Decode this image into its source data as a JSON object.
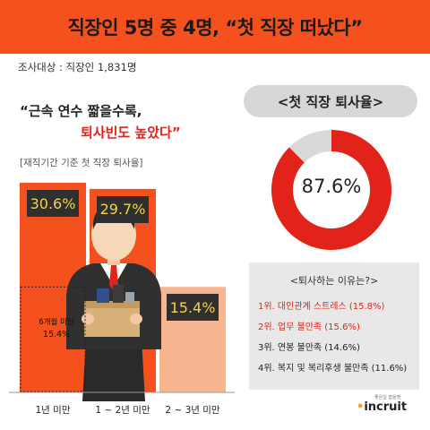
{
  "header": {
    "title": "직장인 5명 중 4명, “첫 직장 떠났다”"
  },
  "survey": {
    "label": "조사대상 : 직장인 1,831명"
  },
  "quote": {
    "line1": "“근속 연수 짧을수록,",
    "line2": "퇴사빈도 높았다”"
  },
  "basis": {
    "label": "[재직기간 기준 첫 직장 퇴사율]"
  },
  "chart_data": [
    {
      "type": "bar",
      "title": "[재직기간 기준 첫 직장 퇴사율]",
      "categories": [
        "1년 미만",
        "1 ~ 2년 미만",
        "2 ~ 3년 미만"
      ],
      "values": [
        30.6,
        29.7,
        15.4
      ],
      "value_labels": [
        "30.6%",
        "29.7%",
        "15.4%"
      ],
      "colors": [
        "#f4511e",
        "#f4511e",
        "#f7b68f"
      ],
      "annotation": {
        "category": "1년 미만",
        "value": 15.4,
        "label": "6개월 미만",
        "value_label": "15.4%"
      }
    },
    {
      "type": "pie",
      "title": "<첫 직장 퇴사율>",
      "values": [
        87.6,
        12.4
      ],
      "value_label": "87.6%",
      "colors": [
        "#e2231a",
        "#d9d9d9"
      ]
    }
  ],
  "donut": {
    "title": "<첫 직장 퇴사율>"
  },
  "reasons": {
    "title": "<퇴사하는 이유는?>",
    "items": [
      "1위. 대인관계 스트레스 (15.8%)",
      "2위. 업무 불만족 (15.6%)",
      "3위. 연봉 불만족 (14.6%)",
      "4위. 복지 및 복리후생 불만족 (11.6%)"
    ]
  },
  "logo": {
    "tagline": "좋은일 잡을땐",
    "name": "incruit"
  }
}
